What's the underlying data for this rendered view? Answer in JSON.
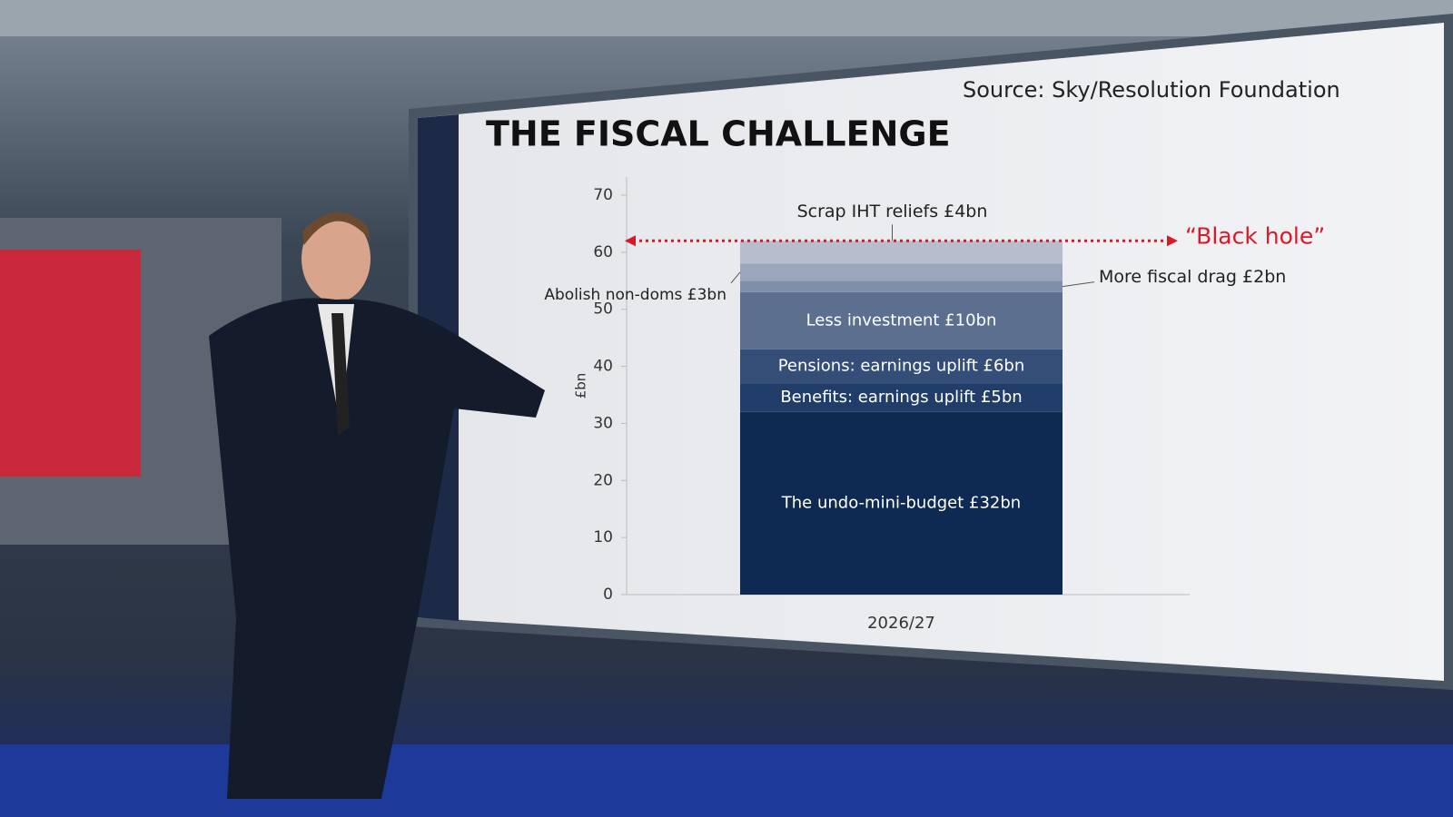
{
  "chart_data": {
    "type": "stacked_bar",
    "title": "THE FISCAL CHALLENGE",
    "source": "Source: Sky/Resolution Foundation",
    "y_label": "£bn",
    "categories": [
      "2026/27"
    ],
    "series": [
      {
        "name": "The undo-mini-budget £32bn",
        "color": "#0f2a52",
        "values": [
          32
        ]
      },
      {
        "name": "Benefits: earnings uplift £5bn",
        "color": "#213d69",
        "values": [
          5
        ]
      },
      {
        "name": "Pensions: earnings uplift £6bn",
        "color": "#354e78",
        "values": [
          6
        ]
      },
      {
        "name": "Less investment £10bn",
        "color": "#5c6f8f",
        "values": [
          10
        ]
      },
      {
        "name": "More fiscal drag £2bn",
        "color": "#7f8ea9",
        "values": [
          2
        ]
      },
      {
        "name": "Abolish non-doms £3bn",
        "color": "#9aa6bc",
        "values": [
          3
        ]
      },
      {
        "name": "Scrap IHT reliefs £4bn",
        "color": "#b6bece",
        "values": [
          4
        ]
      }
    ],
    "black_hole": {
      "label": "“Black hole”",
      "value": 62,
      "color": "#d7192a"
    },
    "ylim": [
      0,
      70
    ],
    "yticks": [
      0,
      10,
      20,
      30,
      40,
      50,
      60,
      70
    ]
  }
}
